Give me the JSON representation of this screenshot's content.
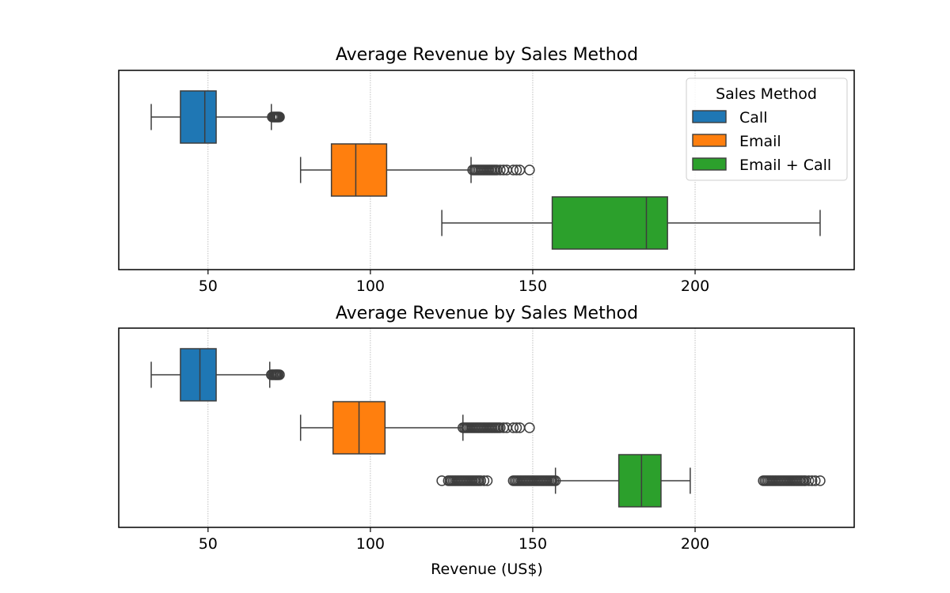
{
  "chart_data": [
    {
      "type": "box",
      "orientation": "horizontal",
      "title": "Average Revenue by Sales Method",
      "xlabel": "",
      "ylabel": "",
      "xlim": [
        22.5,
        249
      ],
      "xticks": [
        50,
        100,
        150,
        200
      ],
      "grid": "x-dotted",
      "legend": {
        "title": "Sales Method",
        "placement": "top-right",
        "entries": [
          "Call",
          "Email",
          "Email + Call"
        ]
      },
      "series": [
        {
          "name": "Call",
          "color": "#1f77b4",
          "whisker_low": 32.5,
          "q1": 41.5,
          "median": 49.0,
          "q3": 52.5,
          "whisker_high": 69.5,
          "outliers": [
            69.8,
            70.2,
            70.5,
            70.8,
            71.1,
            71.4,
            71.7,
            72.0
          ]
        },
        {
          "name": "Email",
          "color": "#ff7f0e",
          "whisker_low": 78.5,
          "q1": 88.0,
          "median": 95.5,
          "q3": 105.0,
          "whisker_high": 131.0,
          "outliers": [
            131.5,
            132.0,
            132.5,
            133.0,
            133.5,
            134.0,
            134.5,
            135.0,
            135.5,
            136.0,
            136.5,
            137.0,
            137.5,
            138.0,
            138.5,
            139.0,
            140.0,
            141.0,
            142.0,
            144.0,
            145.0,
            146.0,
            149.0
          ]
        },
        {
          "name": "Email + Call",
          "color": "#2ca02c",
          "whisker_low": 122.0,
          "q1": 156.0,
          "median": 185.0,
          "q3": 191.5,
          "whisker_high": 238.5,
          "outliers": []
        }
      ]
    },
    {
      "type": "box",
      "orientation": "horizontal",
      "title": "Average Revenue by Sales Method",
      "xlabel": "Revenue (US$)",
      "ylabel": "",
      "xlim": [
        22.5,
        249
      ],
      "xticks": [
        50,
        100,
        150,
        200
      ],
      "grid": "x-dotted",
      "series": [
        {
          "name": "Call",
          "color": "#1f77b4",
          "whisker_low": 32.5,
          "q1": 41.5,
          "median": 47.5,
          "q3": 52.5,
          "whisker_high": 69.0,
          "outliers": [
            69.5,
            69.9,
            70.3,
            70.7,
            71.0,
            71.3,
            71.6,
            72.0
          ]
        },
        {
          "name": "Email",
          "color": "#ff7f0e",
          "whisker_low": 78.5,
          "q1": 88.5,
          "median": 96.5,
          "q3": 104.5,
          "whisker_high": 128.5,
          "outliers": [
            128.5,
            129.0,
            129.5,
            130.0,
            130.5,
            131.0,
            131.5,
            132.0,
            132.5,
            133.0,
            133.5,
            134.0,
            134.5,
            135.0,
            135.5,
            136.0,
            136.5,
            137.0,
            137.5,
            138.0,
            138.5,
            139.0,
            139.5,
            140.0,
            141.0,
            142.0,
            144.0,
            145.0,
            146.0,
            149.0
          ]
        },
        {
          "name": "Email + Call",
          "color": "#2ca02c",
          "whisker_low": 157.0,
          "q1": 176.5,
          "median": 183.5,
          "q3": 189.5,
          "whisker_high": 198.5,
          "outliers": [
            122.0,
            124.0,
            124.5,
            125.0,
            125.5,
            126.0,
            126.5,
            127.0,
            127.5,
            128.0,
            128.5,
            129.0,
            129.5,
            130.0,
            130.5,
            131.0,
            131.5,
            132.0,
            132.5,
            133.0,
            133.5,
            134.0,
            135.0,
            136.0,
            144.0,
            144.5,
            145.0,
            145.5,
            146.0,
            146.5,
            147.0,
            147.5,
            148.0,
            148.5,
            149.0,
            149.5,
            150.0,
            150.5,
            151.0,
            151.5,
            152.0,
            152.5,
            153.0,
            153.5,
            154.0,
            154.5,
            155.0,
            155.5,
            156.0,
            156.5,
            157.0,
            221.0,
            221.5,
            222.0,
            222.5,
            223.0,
            223.5,
            224.0,
            224.5,
            225.0,
            225.5,
            226.0,
            226.5,
            227.0,
            227.5,
            228.0,
            228.5,
            229.0,
            229.5,
            230.0,
            230.5,
            231.0,
            231.5,
            232.0,
            232.5,
            233.0,
            233.5,
            234.0,
            235.0,
            236.0,
            237.0,
            238.5
          ]
        }
      ]
    }
  ]
}
